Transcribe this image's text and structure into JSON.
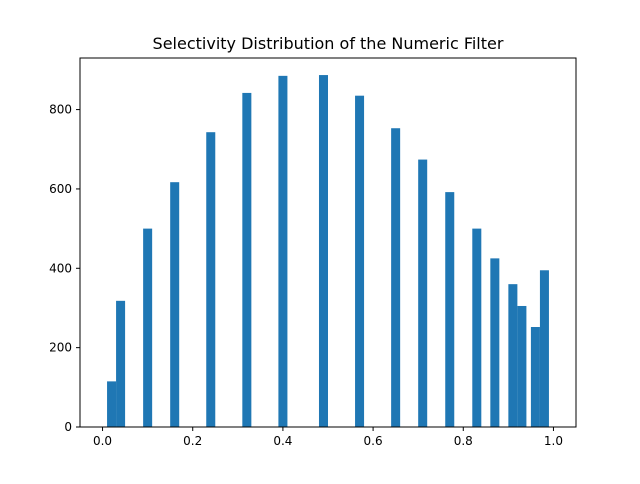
{
  "chart_data": {
    "type": "bar",
    "title": "Selectivity Distribution of the Numeric Filter",
    "xlabel": "",
    "ylabel": "",
    "xlim": [
      -0.05,
      1.05
    ],
    "ylim": [
      0,
      930
    ],
    "bin_width": 0.02,
    "xticks": [
      0.0,
      0.2,
      0.4,
      0.6,
      0.8,
      1.0
    ],
    "xtick_labels": [
      "0.0",
      "0.2",
      "0.4",
      "0.6",
      "0.8",
      "1.0"
    ],
    "yticks": [
      0,
      200,
      400,
      600,
      800
    ],
    "ytick_labels": [
      "0",
      "200",
      "400",
      "600",
      "800"
    ],
    "bar_color": "#1f77b4",
    "grid": false,
    "bars": [
      {
        "x": 0.02,
        "value": 115
      },
      {
        "x": 0.04,
        "value": 318
      },
      {
        "x": 0.1,
        "value": 500
      },
      {
        "x": 0.16,
        "value": 617
      },
      {
        "x": 0.24,
        "value": 743
      },
      {
        "x": 0.32,
        "value": 842
      },
      {
        "x": 0.4,
        "value": 885
      },
      {
        "x": 0.49,
        "value": 887
      },
      {
        "x": 0.57,
        "value": 835
      },
      {
        "x": 0.65,
        "value": 753
      },
      {
        "x": 0.71,
        "value": 674
      },
      {
        "x": 0.77,
        "value": 592
      },
      {
        "x": 0.83,
        "value": 500
      },
      {
        "x": 0.87,
        "value": 425
      },
      {
        "x": 0.91,
        "value": 360
      },
      {
        "x": 0.93,
        "value": 305
      },
      {
        "x": 0.96,
        "value": 252
      },
      {
        "x": 0.98,
        "value": 395
      }
    ]
  }
}
